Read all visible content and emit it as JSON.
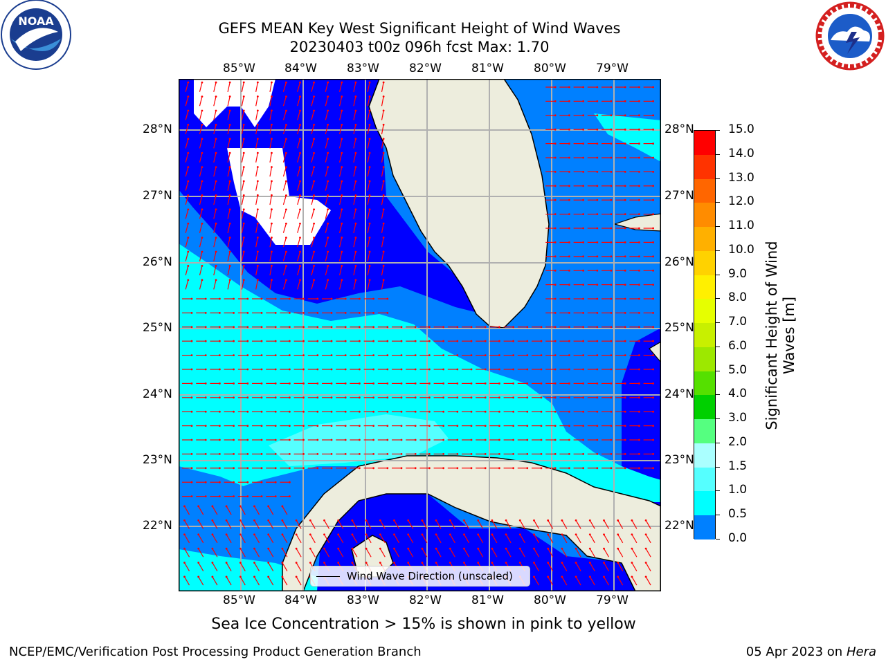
{
  "title": {
    "line1": "GEFS MEAN Key West Significant Height of Wind Waves",
    "line2": "20230403 t00z 096h fcst   Max: 1.70"
  },
  "axes": {
    "lon_labels": [
      "85°W",
      "84°W",
      "83°W",
      "82°W",
      "81°W",
      "80°W",
      "79°W"
    ],
    "lat_labels": [
      "28°N",
      "27°N",
      "26°N",
      "25°N",
      "24°N",
      "23°N",
      "22°N"
    ]
  },
  "legend": {
    "label": "Wind Wave Direction (unscaled)"
  },
  "colorbar": {
    "title_line1": "Significant Height of Wind",
    "title_line2": "Waves [m]",
    "ticks": [
      "15.0",
      "14.0",
      "13.0",
      "12.0",
      "11.0",
      "10.0",
      "9.0",
      "8.0",
      "7.0",
      "6.0",
      "5.0",
      "4.0",
      "3.0",
      "2.0",
      "1.5",
      "1.0",
      "0.5",
      "0.0"
    ],
    "colors": [
      "#ff0000",
      "#ff3300",
      "#ff6600",
      "#ff8c00",
      "#ffb000",
      "#ffd200",
      "#fff000",
      "#e6ff00",
      "#c8f000",
      "#9de800",
      "#55e000",
      "#00d000",
      "#55ff80",
      "#aaffff",
      "#55ffff",
      "#00ffff",
      "#0080ff",
      "#0000ff"
    ]
  },
  "map": {
    "land_color": "#ededdd",
    "ocean_levels": [
      "#0000ff",
      "#0080ff",
      "#00ffff",
      "#55ffff"
    ],
    "arrow_color": "#ff0000"
  },
  "footer": {
    "subtitle": "Sea Ice Concentration > 15% is shown in pink to yellow",
    "left": "NCEP/EMC/Verification Post Processing Product Generation Branch",
    "right_date": "05 Apr 2023 on ",
    "right_host": "Hera"
  },
  "logos": {
    "noaa_text": "NOAA",
    "nws_text": "NATIONAL WEATHER SERVICE"
  }
}
